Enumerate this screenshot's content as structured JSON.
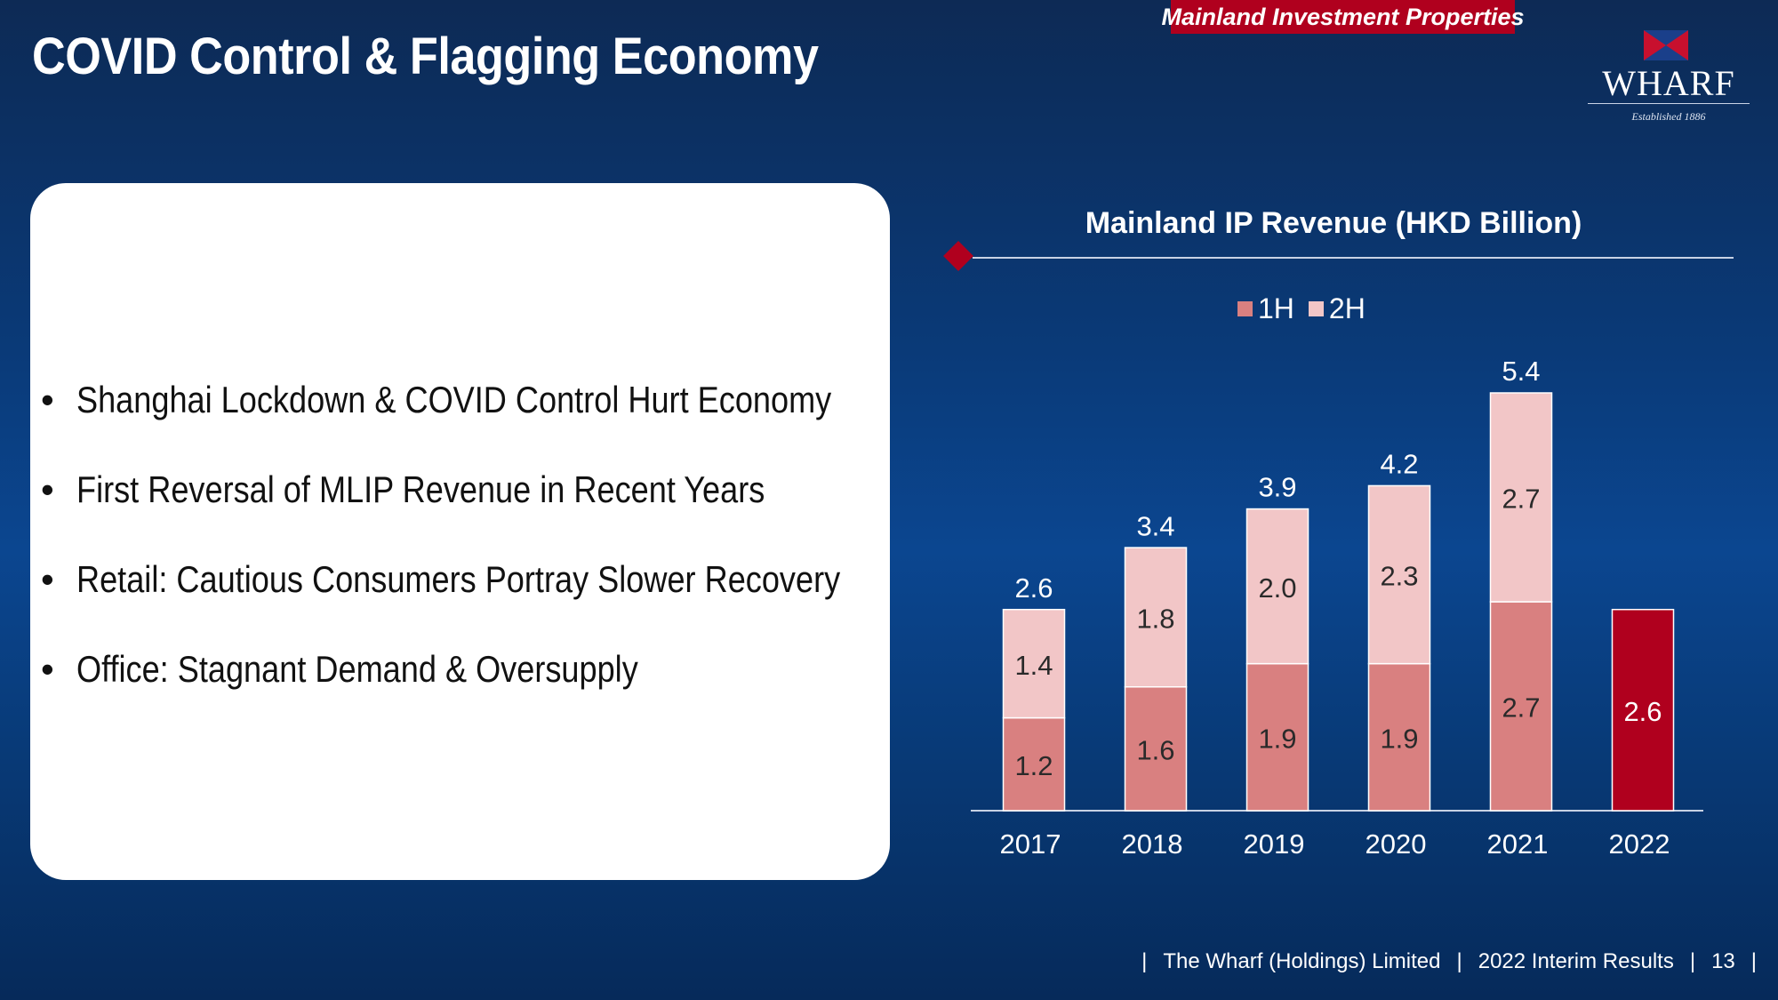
{
  "header": {
    "title": "COVID Control & Flagging Economy",
    "section_tag": "Mainland Investment Properties"
  },
  "logo": {
    "name": "WHARF",
    "tagline": "Established 1886"
  },
  "bullets": [
    "Shanghai Lockdown & COVID Control Hurt Economy",
    "First Reversal of MLIP Revenue in Recent Years",
    "Retail: Cautious Consumers Portray Slower Recovery",
    "Office: Stagnant Demand & Oversupply"
  ],
  "footer": {
    "company": "The Wharf (Holdings) Limited",
    "report": "2022 Interim Results",
    "page": "13"
  },
  "colors": {
    "first_half": "#d98080",
    "second_half": "#f2c6c7",
    "highlight": "#b0001e"
  },
  "chart_data": {
    "type": "bar",
    "stacked": true,
    "title": "Mainland IP Revenue (HKD Billion)",
    "categories": [
      "2017",
      "2018",
      "2019",
      "2020",
      "2021",
      "2022"
    ],
    "series": [
      {
        "name": "1H",
        "values": [
          1.2,
          1.6,
          1.9,
          1.9,
          2.7,
          2.6
        ]
      },
      {
        "name": "2H",
        "values": [
          1.4,
          1.8,
          2.0,
          2.3,
          2.7,
          null
        ]
      }
    ],
    "totals": [
      "2.6",
      "3.4",
      "3.9",
      "4.2",
      "5.4",
      null
    ],
    "highlight_category": "2022",
    "legend_position": "top",
    "ylim": [
      0,
      5.4
    ],
    "grid": false
  }
}
